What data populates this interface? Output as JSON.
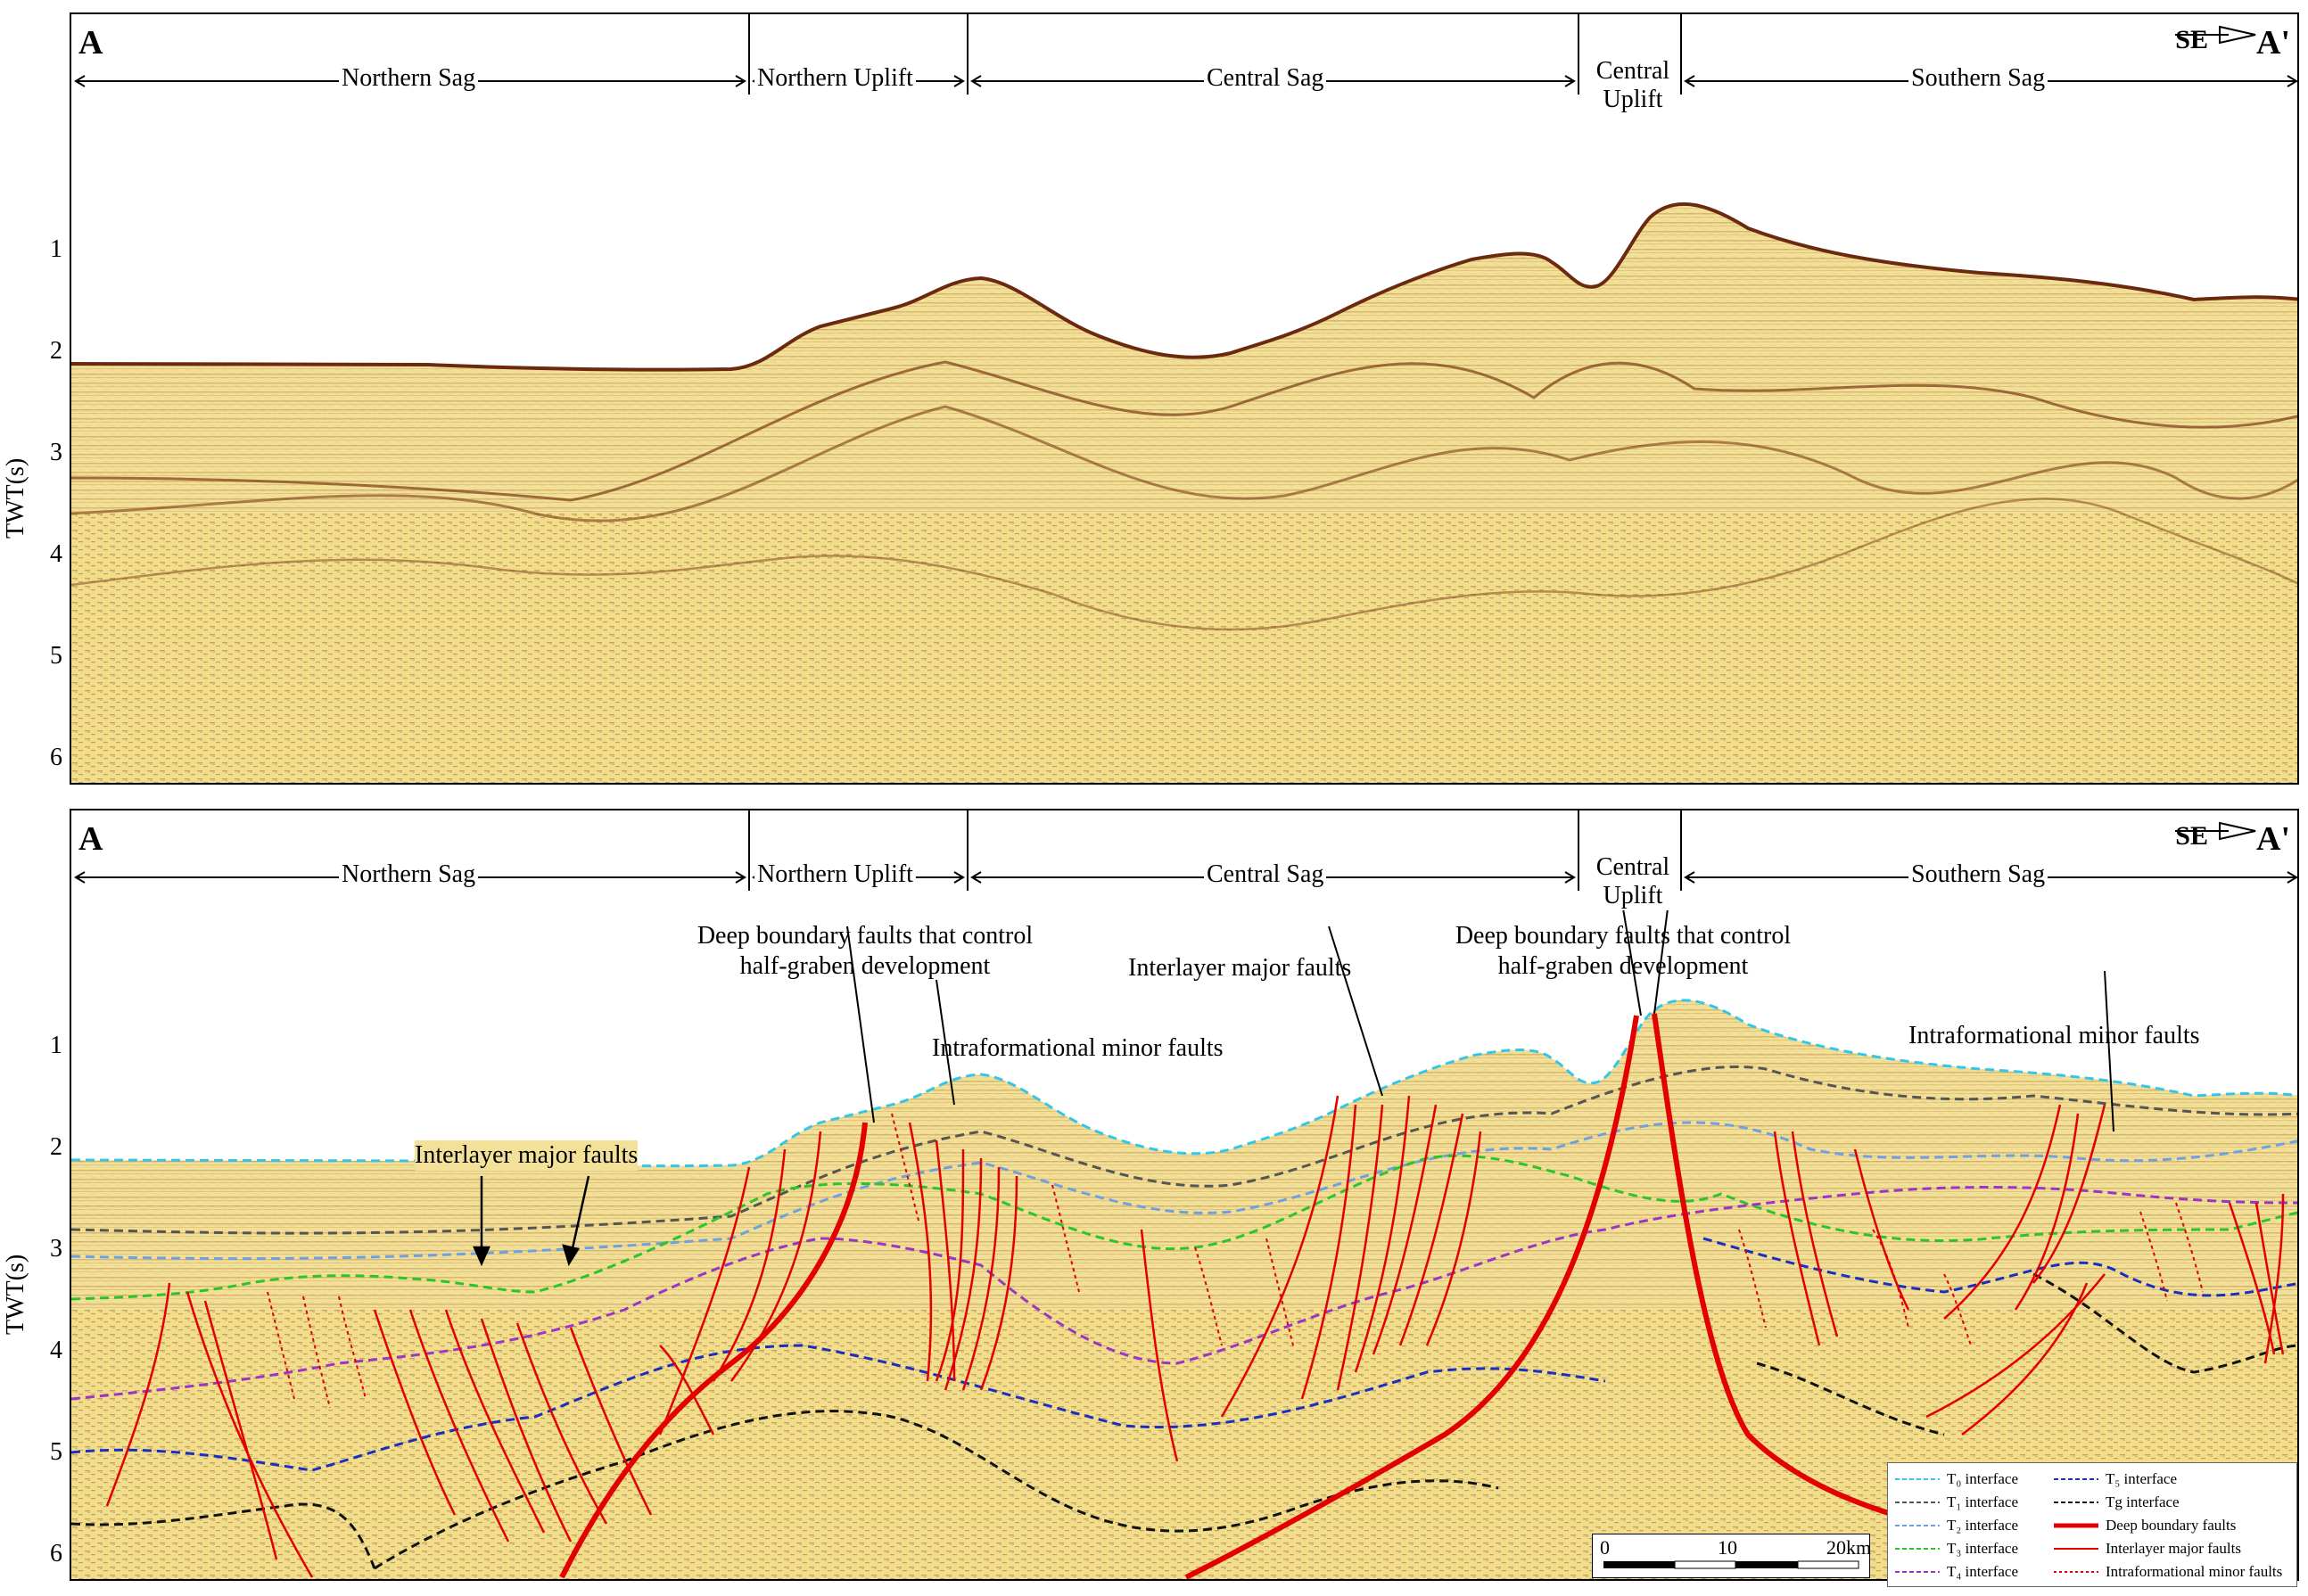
{
  "profile": {
    "start_label": "A",
    "end_label": "A'",
    "direction": "SE",
    "zones": [
      {
        "label": "Northern Sag"
      },
      {
        "label": "Northern Uplift"
      },
      {
        "label": "Central Sag"
      },
      {
        "label": "Central Uplift"
      },
      {
        "label": "Southern Sag"
      }
    ]
  },
  "axis": {
    "title": "TWT(s)",
    "ticks": [
      "1",
      "2",
      "3",
      "4",
      "5",
      "6"
    ]
  },
  "annotations": {
    "deep_faults_left": "Deep boundary faults that control half-graben development",
    "intraformational_center": "Intraformational minor faults",
    "interlayer_center": "Interlayer major faults",
    "deep_faults_right": "Deep boundary faults that control half-graben development",
    "intraformational_right": "Intraformational minor faults",
    "interlayer_left": "Interlayer major faults"
  },
  "legend": [
    {
      "label": "T₀ interface",
      "color": "#33c6e8",
      "style": "dashed"
    },
    {
      "label": "T₁ interface",
      "color": "#555555",
      "style": "dashed"
    },
    {
      "label": "T₂ interface",
      "color": "#6fa0e0",
      "style": "dashed"
    },
    {
      "label": "T₃ interface",
      "color": "#2bc52b",
      "style": "dashed"
    },
    {
      "label": "T₄ interface",
      "color": "#9a35c4",
      "style": "dashed"
    },
    {
      "label": "T₅ interface",
      "color": "#1a2fc0",
      "style": "dashed"
    },
    {
      "label": "Tg interface",
      "color": "#111111",
      "style": "dashed"
    },
    {
      "label": "Deep boundary faults",
      "color": "#e30000",
      "style": "thick"
    },
    {
      "label": "Interlayer major faults",
      "color": "#e30000",
      "style": "solid"
    },
    {
      "label": "Intraformational minor faults",
      "color": "#e30000",
      "style": "dotted"
    }
  ],
  "scale": {
    "labels": [
      "0",
      "10",
      "20km"
    ]
  },
  "colors": {
    "seismic_fill": "#f2dd8a",
    "seismic_band": "#8a5a2a",
    "fault": "#e30000"
  }
}
